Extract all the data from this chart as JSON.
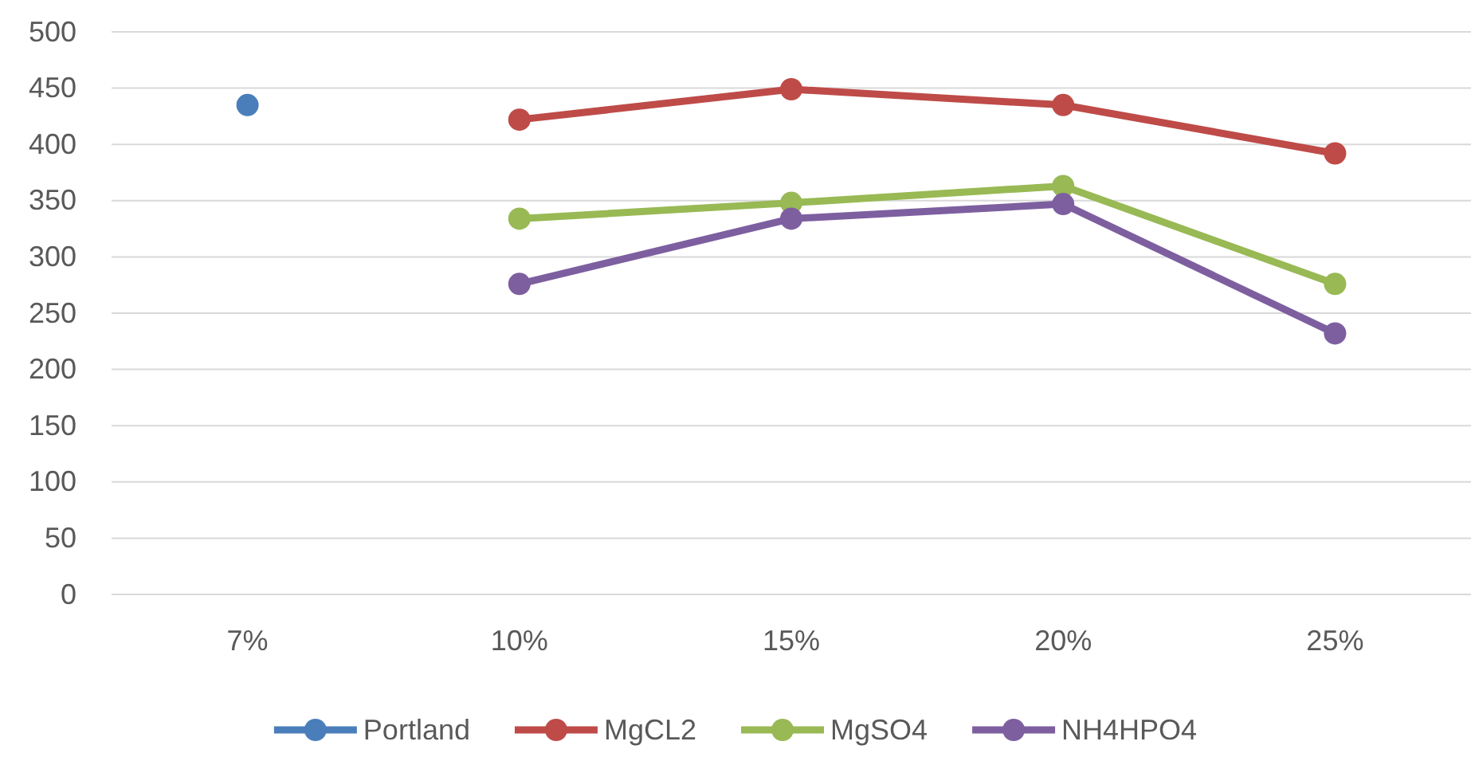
{
  "chart_data": {
    "type": "line",
    "categories": [
      "7%",
      "10%",
      "15%",
      "20%",
      "25%"
    ],
    "series": [
      {
        "name": "Portland",
        "color": "#4a7ebb",
        "values": [
          435,
          null,
          null,
          null,
          null
        ]
      },
      {
        "name": "MgCL2",
        "color": "#be4b48",
        "values": [
          null,
          422,
          449,
          435,
          392
        ]
      },
      {
        "name": "MgSO4",
        "color": "#98b954",
        "values": [
          null,
          334,
          348,
          363,
          276
        ]
      },
      {
        "name": "NH4HPO4",
        "color": "#7d5fa0",
        "values": [
          null,
          276,
          334,
          347,
          232
        ]
      }
    ],
    "ylim": [
      0,
      500
    ],
    "yticks": [
      0,
      50,
      100,
      150,
      200,
      250,
      300,
      350,
      400,
      450,
      500
    ],
    "grid": "y",
    "legend": "bottom",
    "marker": "circle",
    "line_style": "solid"
  }
}
